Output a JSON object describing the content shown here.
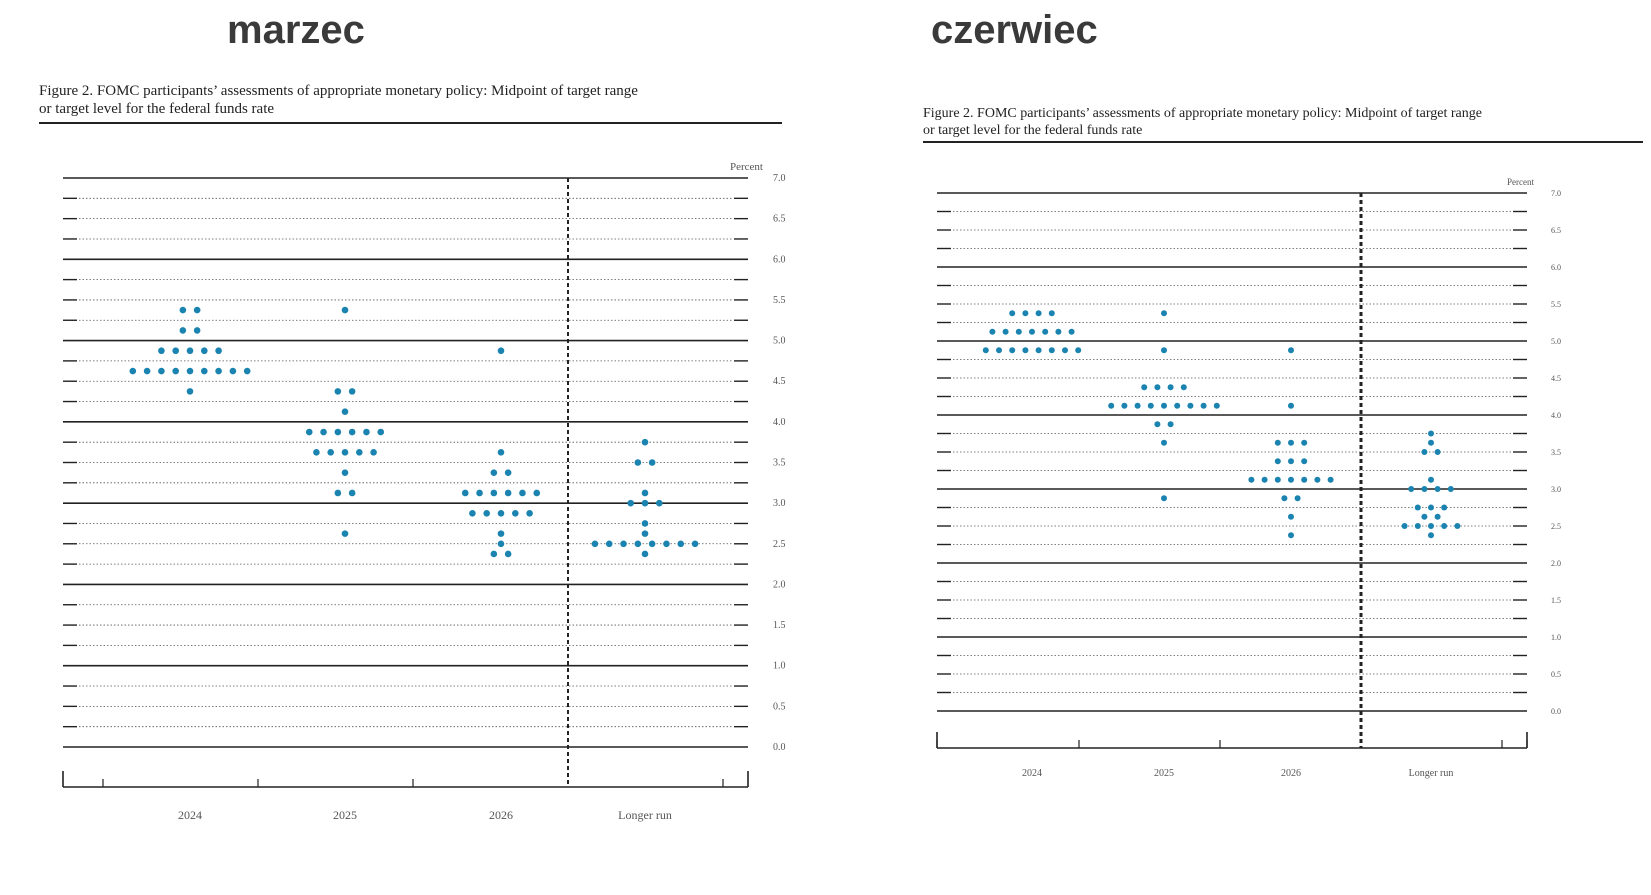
{
  "panels": {
    "left": {
      "heading": "marzec"
    },
    "right": {
      "heading": "czerwiec"
    }
  },
  "colors": {
    "dot": "#1a83b0",
    "line": "#222222",
    "grid": "#555555"
  },
  "chart_data": [
    {
      "type": "scatter",
      "title": "Figure 2.  FOMC participants’ assessments of appropriate monetary policy:  Midpoint of target range or target level for the federal funds rate",
      "title_lines": [
        "Figure 2.  FOMC participants’ assessments of appropriate monetary policy:  Midpoint of target range",
        "or target level for the federal funds rate"
      ],
      "ylabel": "Percent",
      "ylim": [
        0,
        7
      ],
      "yticks": [
        "0.0",
        "0.5",
        "1.0",
        "1.5",
        "2.0",
        "2.5",
        "3.0",
        "3.5",
        "4.0",
        "4.5",
        "5.0",
        "5.5",
        "6.0",
        "6.5",
        "7.0"
      ],
      "categories": [
        "2024",
        "2025",
        "2026",
        "Longer run"
      ],
      "grid": true,
      "series": [
        {
          "x": "2024",
          "dots": [
            {
              "y": 5.375,
              "n": 2
            },
            {
              "y": 5.125,
              "n": 2
            },
            {
              "y": 4.875,
              "n": 5
            },
            {
              "y": 4.625,
              "n": 9
            },
            {
              "y": 4.375,
              "n": 1
            }
          ]
        },
        {
          "x": "2025",
          "dots": [
            {
              "y": 5.375,
              "n": 1
            },
            {
              "y": 4.375,
              "n": 2
            },
            {
              "y": 4.125,
              "n": 1
            },
            {
              "y": 3.875,
              "n": 6
            },
            {
              "y": 3.625,
              "n": 5
            },
            {
              "y": 3.375,
              "n": 1
            },
            {
              "y": 3.125,
              "n": 2
            },
            {
              "y": 2.625,
              "n": 1
            }
          ]
        },
        {
          "x": "2026",
          "dots": [
            {
              "y": 4.875,
              "n": 1
            },
            {
              "y": 3.625,
              "n": 1
            },
            {
              "y": 3.375,
              "n": 2
            },
            {
              "y": 3.125,
              "n": 6
            },
            {
              "y": 2.875,
              "n": 5
            },
            {
              "y": 2.625,
              "n": 1
            },
            {
              "y": 2.5,
              "n": 1
            },
            {
              "y": 2.375,
              "n": 2
            }
          ]
        },
        {
          "x": "Longer run",
          "dots": [
            {
              "y": 3.75,
              "n": 1
            },
            {
              "y": 3.5,
              "n": 2
            },
            {
              "y": 3.125,
              "n": 1
            },
            {
              "y": 3.0,
              "n": 3
            },
            {
              "y": 2.75,
              "n": 1
            },
            {
              "y": 2.625,
              "n": 1
            },
            {
              "y": 2.5,
              "n": 8
            },
            {
              "y": 2.375,
              "n": 1
            }
          ]
        }
      ]
    },
    {
      "type": "scatter",
      "title": "Figure 2.  FOMC participants’ assessments of appropriate monetary policy:  Midpoint of target range or target level for the federal funds rate",
      "title_lines": [
        "Figure 2.  FOMC participants’ assessments of appropriate monetary policy:  Midpoint of target range",
        "or target level for the federal funds rate"
      ],
      "ylabel": "Percent",
      "ylim": [
        0,
        7
      ],
      "yticks": [
        "0.0",
        "0.5",
        "1.0",
        "1.5",
        "2.0",
        "2.5",
        "3.0",
        "3.5",
        "4.0",
        "4.5",
        "5.0",
        "5.5",
        "6.0",
        "6.5",
        "7.0"
      ],
      "categories": [
        "2024",
        "2025",
        "2026",
        "Longer run"
      ],
      "grid": true,
      "series": [
        {
          "x": "2024",
          "dots": [
            {
              "y": 5.375,
              "n": 4
            },
            {
              "y": 5.125,
              "n": 7
            },
            {
              "y": 4.875,
              "n": 8
            }
          ]
        },
        {
          "x": "2025",
          "dots": [
            {
              "y": 5.375,
              "n": 1
            },
            {
              "y": 4.875,
              "n": 1
            },
            {
              "y": 4.375,
              "n": 4
            },
            {
              "y": 4.125,
              "n": 9
            },
            {
              "y": 3.875,
              "n": 2
            },
            {
              "y": 3.625,
              "n": 1
            },
            {
              "y": 2.875,
              "n": 1
            }
          ]
        },
        {
          "x": "2026",
          "dots": [
            {
              "y": 4.875,
              "n": 1
            },
            {
              "y": 4.125,
              "n": 1
            },
            {
              "y": 3.625,
              "n": 3
            },
            {
              "y": 3.375,
              "n": 3
            },
            {
              "y": 3.125,
              "n": 7
            },
            {
              "y": 2.875,
              "n": 2
            },
            {
              "y": 2.625,
              "n": 1
            },
            {
              "y": 2.375,
              "n": 1
            }
          ]
        },
        {
          "x": "Longer run",
          "dots": [
            {
              "y": 3.75,
              "n": 1
            },
            {
              "y": 3.625,
              "n": 1
            },
            {
              "y": 3.5,
              "n": 2
            },
            {
              "y": 3.125,
              "n": 1
            },
            {
              "y": 3.0,
              "n": 4
            },
            {
              "y": 2.75,
              "n": 3
            },
            {
              "y": 2.625,
              "n": 2
            },
            {
              "y": 2.5,
              "n": 5
            },
            {
              "y": 2.375,
              "n": 1
            }
          ]
        }
      ]
    }
  ]
}
